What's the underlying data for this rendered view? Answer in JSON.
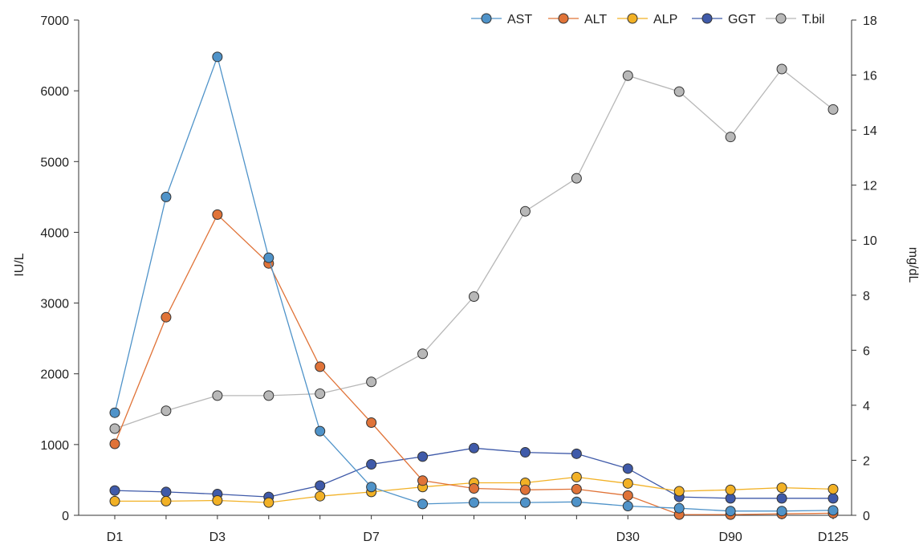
{
  "chart_data": {
    "type": "line",
    "title": "",
    "xlabel": "",
    "ylabel": "IU/L",
    "ylabel_right": "mg/dL",
    "ylim": [
      0,
      7000
    ],
    "ylim_right": [
      0,
      18
    ],
    "yticks": [
      "0",
      "1000",
      "2000",
      "3000",
      "4000",
      "5000",
      "6000",
      "7000"
    ],
    "yticks_right": [
      "0",
      "2",
      "4",
      "6",
      "8",
      "10",
      "12",
      "14",
      "16",
      "18"
    ],
    "x_points": 15,
    "xtick_labels": [
      {
        "index": 0,
        "label": "D1"
      },
      {
        "index": 2,
        "label": "D3"
      },
      {
        "index": 5,
        "label": "D7"
      },
      {
        "index": 10,
        "label": "D30"
      },
      {
        "index": 12,
        "label": "D90"
      },
      {
        "index": 14,
        "label": "D125"
      }
    ],
    "grid": false,
    "legend_position": "top-right",
    "series": [
      {
        "name": "AST",
        "axis": "left",
        "color": "#4f93c9",
        "values": [
          1450,
          4500,
          6480,
          3640,
          1190,
          400,
          160,
          180,
          180,
          190,
          130,
          100,
          60,
          60,
          70
        ]
      },
      {
        "name": "ALT",
        "axis": "left",
        "color": "#e07338",
        "values": [
          1010,
          2800,
          4250,
          3560,
          2100,
          1310,
          490,
          380,
          360,
          370,
          280,
          10,
          10,
          20,
          30
        ]
      },
      {
        "name": "ALP",
        "axis": "left",
        "color": "#f2b125",
        "values": [
          200,
          200,
          210,
          180,
          270,
          330,
          400,
          460,
          460,
          540,
          450,
          340,
          360,
          390,
          370
        ]
      },
      {
        "name": "GGT",
        "axis": "left",
        "color": "#3f5aa9",
        "values": [
          350,
          330,
          300,
          260,
          420,
          720,
          830,
          950,
          890,
          870,
          660,
          260,
          240,
          240,
          240
        ]
      },
      {
        "name": "T.bil",
        "axis": "right",
        "color": "#b8b8b8",
        "values": [
          3.15,
          3.8,
          4.35,
          4.35,
          4.42,
          4.85,
          5.87,
          7.95,
          11.05,
          12.25,
          15.98,
          15.4,
          13.75,
          16.22,
          14.75
        ]
      }
    ]
  }
}
